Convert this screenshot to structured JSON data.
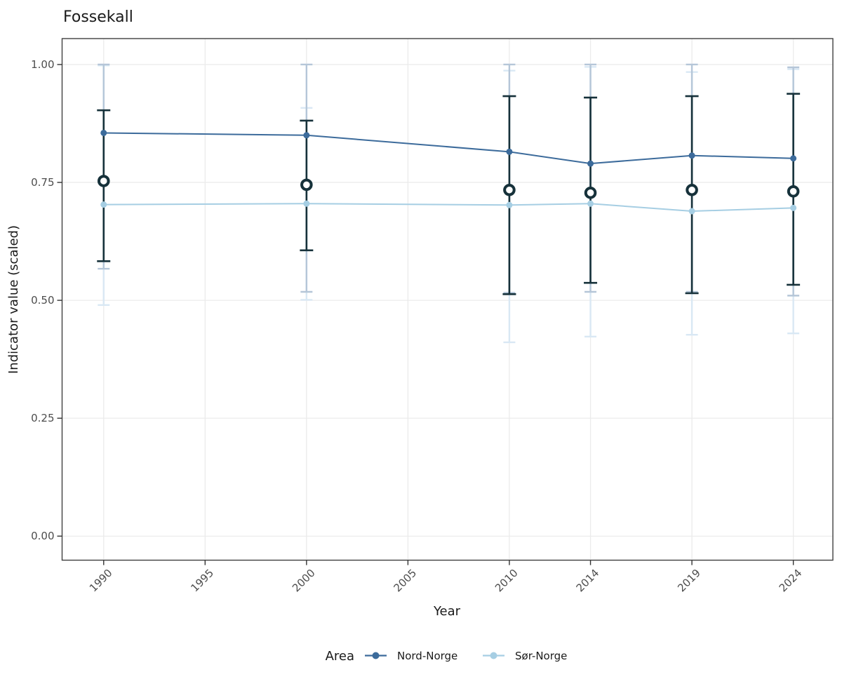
{
  "title": "Fossekall",
  "axes": {
    "x": {
      "label": "Year",
      "ticks": [
        1990,
        1995,
        2000,
        2005,
        2010,
        2014,
        2019,
        2024
      ],
      "domain": [
        1987.95,
        2025.95
      ]
    },
    "y": {
      "label": "Indicator value (scaled)",
      "ticks": [
        0.0,
        0.25,
        0.5,
        0.75,
        1.0
      ],
      "tick_labels": [
        "0.00",
        "0.25",
        "0.50",
        "0.75",
        "1.00"
      ],
      "domain": [
        -0.051,
        1.055
      ]
    }
  },
  "legend": {
    "title": "Area",
    "items": [
      {
        "label": "Nord-Norge",
        "color": "#3c6b9b"
      },
      {
        "label": "Sør-Norge",
        "color": "#a6cee3"
      }
    ]
  },
  "colors": {
    "background": "#ffffff",
    "gridline": "#ebebeb",
    "panel_border": "#404040",
    "tick_mark": "#333333",
    "dark_errorbar": "#16313a",
    "nord_line": "#3c6b9b",
    "nord_ci": "#b5c6d8",
    "sor_line": "#a6cee3",
    "sor_ci": "#d9e8f4",
    "open_circle_ring": "#16313a",
    "open_circle_fill": "#ffffff"
  },
  "chart_data": {
    "type": "line",
    "title": "Fossekall",
    "xlabel": "Year",
    "ylabel": "Indicator value (scaled)",
    "grid": "major-only",
    "legend_position": "bottom",
    "x": [
      1990,
      2000,
      2010,
      2014,
      2019,
      2024
    ],
    "x_ticks": [
      1990,
      1995,
      2000,
      2005,
      2010,
      2014,
      2019,
      2024
    ],
    "y_ticks": [
      0.0,
      0.25,
      0.5,
      0.75,
      1.0
    ],
    "xlim": [
      1987.95,
      2025.95
    ],
    "ylim": [
      -0.051,
      1.055
    ],
    "series": [
      {
        "name": "Sør-Norge",
        "marker": "dot",
        "in_legend": true,
        "color": "#a6cee3",
        "ci_color": "#d9e8f4",
        "values": [
          0.703,
          0.705,
          0.702,
          0.705,
          0.689,
          0.696
        ],
        "ci_low": [
          0.49,
          0.501,
          0.411,
          0.423,
          0.427,
          0.43
        ],
        "ci_high": [
          0.998,
          0.908,
          0.987,
          0.995,
          0.984,
          0.99
        ]
      },
      {
        "name": "Nord-Norge",
        "marker": "dot",
        "in_legend": true,
        "color": "#3c6b9b",
        "ci_color": "#b5c6d8",
        "values": [
          0.855,
          0.85,
          0.815,
          0.79,
          0.807,
          0.801
        ],
        "ci_low": [
          0.567,
          0.518,
          0.516,
          0.518,
          0.518,
          0.51
        ],
        "ci_high": [
          1.0,
          1.0,
          1.0,
          1.0,
          1.0,
          0.994
        ]
      },
      {
        "name": "",
        "marker": "open-circle",
        "in_legend": false,
        "color": "#16313a",
        "ci_color": "#16313a",
        "values": [
          0.753,
          0.745,
          0.734,
          0.728,
          0.734,
          0.731
        ],
        "ci_low": [
          0.583,
          0.606,
          0.513,
          0.537,
          0.515,
          0.533
        ],
        "ci_high": [
          0.903,
          0.881,
          0.933,
          0.93,
          0.933,
          0.938
        ]
      }
    ]
  }
}
